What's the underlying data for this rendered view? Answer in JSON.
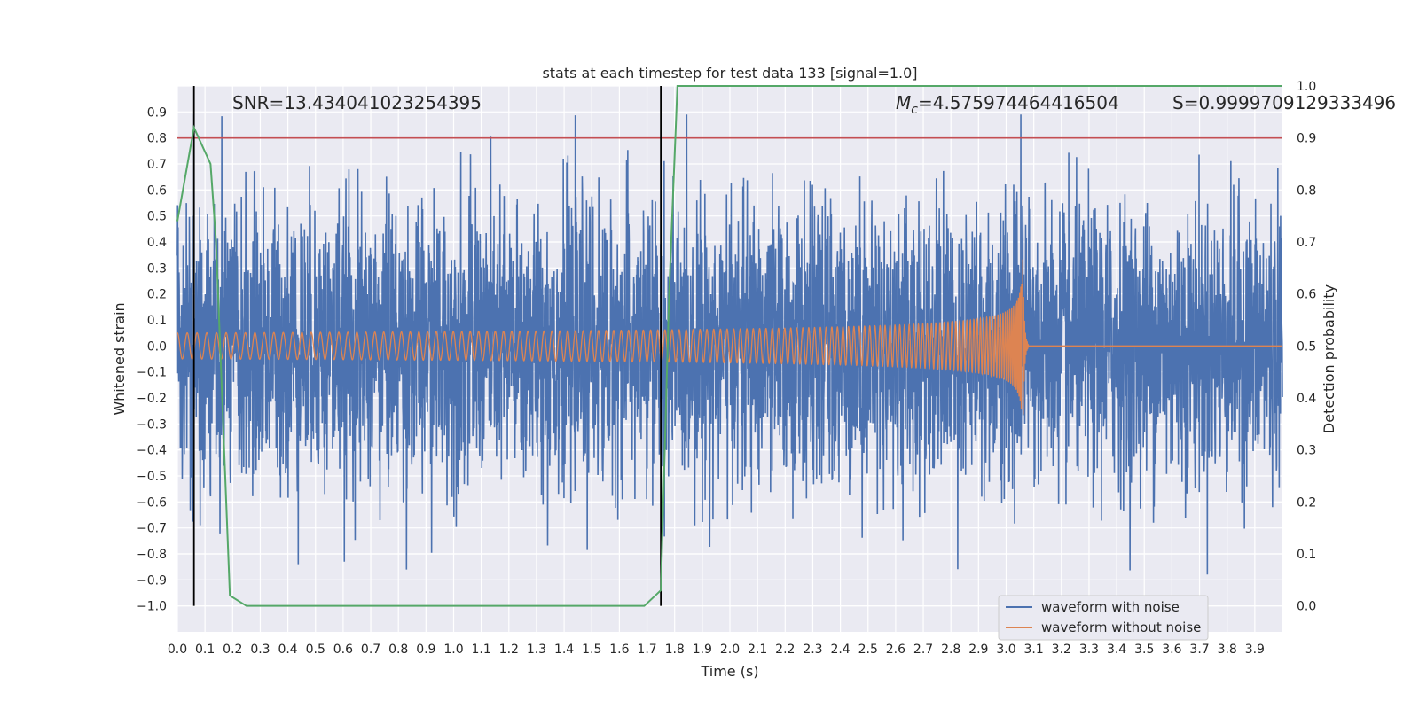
{
  "chart_data": {
    "type": "line",
    "title": "stats at each timestep for test data 133 [signal=1.0]",
    "xlabel": "Time (s)",
    "ylabel": "Whitened strain",
    "y2label": "Detection probability",
    "xlim": [
      0.0,
      4.0
    ],
    "ylim": [
      -1.1,
      1.0
    ],
    "y2lim": [
      -0.05,
      1.0
    ],
    "xticks": [
      0.0,
      0.1,
      0.2,
      0.3,
      0.4,
      0.5,
      0.6,
      0.7,
      0.8,
      0.9,
      1.0,
      1.1,
      1.2,
      1.3,
      1.4,
      1.5,
      1.6,
      1.7,
      1.8,
      1.9,
      2.0,
      2.1,
      2.2,
      2.3,
      2.4,
      2.5,
      2.6,
      2.7,
      2.8,
      2.9,
      3.0,
      3.1,
      3.2,
      3.3,
      3.4,
      3.5,
      3.6,
      3.7,
      3.8,
      3.9
    ],
    "yticks": [
      0.9,
      0.8,
      0.7,
      0.6,
      0.5,
      0.4,
      0.3,
      0.2,
      0.1,
      0.0,
      -0.1,
      -0.2,
      -0.3,
      -0.4,
      -0.5,
      -0.6,
      -0.7,
      -0.8,
      -0.9,
      -1.0
    ],
    "y2ticks": [
      1.0,
      0.9,
      0.8,
      0.7,
      0.6,
      0.5,
      0.4,
      0.3,
      0.2,
      0.1,
      0.0
    ],
    "grid": true,
    "legend_position": "lower-right",
    "annotations": {
      "snr": "SNR=13.434041023254395",
      "mc_symbol": "M",
      "mc_sub": "c",
      "mc_value": "=4.575974464416504",
      "s": "S=0.9999709129333496"
    },
    "threshold_line": {
      "y2": 0.9,
      "color": "#c44e52"
    },
    "vertical_markers": [
      0.06,
      1.75
    ],
    "merger_time": 3.06,
    "series": [
      {
        "name": "waveform with noise",
        "color": "#4c72b0",
        "kind": "noise",
        "axis": "left",
        "amplitude_range": [
          -1.0,
          0.89
        ]
      },
      {
        "name": "waveform without noise",
        "color": "#dd8452",
        "kind": "chirp",
        "axis": "left",
        "amplitude_start": 0.05,
        "amplitude_peak": 0.37
      },
      {
        "name": "detection probability",
        "color": "#55a868",
        "kind": "line",
        "axis": "right",
        "x": [
          0.0,
          0.06,
          0.12,
          0.14,
          0.19,
          0.25,
          0.5,
          1.0,
          1.5,
          1.69,
          1.75,
          1.78,
          1.81,
          2.0,
          2.5,
          3.0,
          3.5,
          4.0
        ],
        "y": [
          0.74,
          0.92,
          0.85,
          0.7,
          0.02,
          0.0,
          0.0,
          0.0,
          0.0,
          0.0,
          0.03,
          0.6,
          1.0,
          1.0,
          1.0,
          1.0,
          1.0,
          1.0
        ]
      }
    ]
  },
  "legend": {
    "noise_label": "waveform with noise",
    "clean_label": "waveform without noise"
  }
}
